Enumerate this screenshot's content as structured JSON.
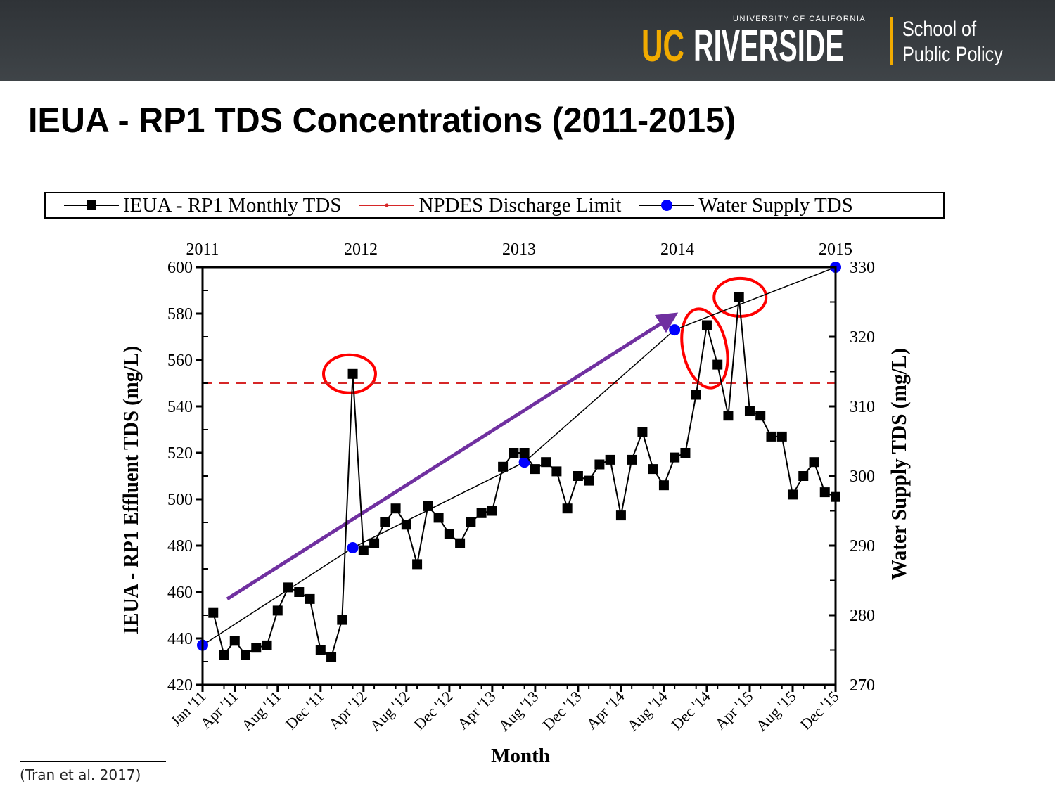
{
  "header": {
    "logo_uc": "UC",
    "logo_riverside": "RIVERSIDE",
    "logo_university": "UNIVERSITY OF CALIFORNIA",
    "school_line1": "School of",
    "school_line2": "Public Policy",
    "brand_gold": "#f1ab00",
    "bg_color": "#3a3f43"
  },
  "slide_title": "IEUA - RP1 TDS Concentrations (2011-2015)",
  "footnote": "(Tran et al. 2017)",
  "chart_data": {
    "type": "line",
    "title": "",
    "xlabel": "Month",
    "ylabel": "IEUA - RP1 Effluent TDS (mg/L)",
    "y2label": "Water Supply TDS (mg/L)",
    "ylim": [
      420,
      600
    ],
    "y2lim": [
      270,
      330
    ],
    "yticks": [
      420,
      440,
      460,
      480,
      500,
      520,
      540,
      560,
      580,
      600
    ],
    "y2ticks": [
      270,
      280,
      290,
      300,
      310,
      320,
      330
    ],
    "xlim_months": [
      0,
      59
    ],
    "xtick_labels": [
      {
        "month": 0,
        "label": "Jan '11"
      },
      {
        "month": 3,
        "label": "Apr '11"
      },
      {
        "month": 7,
        "label": "Aug '11"
      },
      {
        "month": 11,
        "label": "Dec '11"
      },
      {
        "month": 15,
        "label": "Apr '12"
      },
      {
        "month": 19,
        "label": "Aug '12"
      },
      {
        "month": 23,
        "label": "Dec '12"
      },
      {
        "month": 27,
        "label": "Apr '13"
      },
      {
        "month": 31,
        "label": "Aug '13"
      },
      {
        "month": 35,
        "label": "Dec '13"
      },
      {
        "month": 39,
        "label": "Apr '14"
      },
      {
        "month": 43,
        "label": "Aug '14"
      },
      {
        "month": 47,
        "label": "Dec '14"
      },
      {
        "month": 51,
        "label": "Apr '15"
      },
      {
        "month": 55,
        "label": "Aug '15"
      },
      {
        "month": 59,
        "label": "Dec '15"
      }
    ],
    "top_axis_labels": [
      {
        "month": 0,
        "label": "2011"
      },
      {
        "month": 15,
        "label": "2012"
      },
      {
        "month": 30,
        "label": "2013"
      },
      {
        "month": 45,
        "label": "2014"
      },
      {
        "month": 60,
        "label": "2015"
      }
    ],
    "legend": {
      "position": "top",
      "entries": [
        "IEUA - RP1 Monthly TDS",
        "NPDES Discharge Limit",
        "Water Supply TDS"
      ]
    },
    "series": [
      {
        "name": "IEUA - RP1 Monthly TDS",
        "axis": "left",
        "color": "#000000",
        "marker": "square",
        "months": [
          1,
          2,
          3,
          4,
          5,
          6,
          7,
          8,
          9,
          10,
          11,
          12,
          13,
          14,
          15,
          16,
          17,
          18,
          19,
          20,
          21,
          22,
          23,
          24,
          25,
          26,
          27,
          28,
          29,
          30,
          31,
          32,
          33,
          34,
          35,
          36,
          37,
          38,
          39,
          40,
          41,
          42,
          43,
          44,
          45,
          46,
          47,
          48,
          49,
          50,
          51,
          52,
          53,
          54,
          55,
          56,
          57,
          58,
          59
        ],
        "values": [
          451,
          433,
          439,
          433,
          436,
          437,
          452,
          462,
          460,
          457,
          435,
          432,
          448,
          554,
          478,
          481,
          490,
          496,
          489,
          472,
          497,
          492,
          485,
          481,
          490,
          494,
          495,
          514,
          520,
          520,
          513,
          516,
          512,
          496,
          510,
          508,
          515,
          517,
          493,
          517,
          529,
          513,
          506,
          518,
          520,
          545,
          575,
          558,
          536,
          587,
          538,
          536,
          527,
          527,
          502,
          510,
          516,
          503,
          501
        ]
      },
      {
        "name": "NPDES Discharge Limit",
        "axis": "left",
        "color": "#d62728",
        "style": "dashed",
        "value": 550
      },
      {
        "name": "Water Supply TDS",
        "axis": "right",
        "color": "#0000ff",
        "marker": "circle",
        "months": [
          0,
          14,
          30,
          44,
          59
        ],
        "values": [
          275.7,
          289.7,
          302.0,
          321.0,
          330.0
        ]
      }
    ],
    "annotations": [
      {
        "type": "arrow",
        "color": "#7030a0",
        "from": {
          "month": 2.3,
          "value": 457
        },
        "to": {
          "month": 43.5,
          "value": 578
        },
        "description": "upward trend arrow"
      },
      {
        "type": "circle",
        "color": "#ff0000",
        "month": 13.7,
        "value": 554
      },
      {
        "type": "ellipse",
        "color": "#ff0000",
        "month": 46.8,
        "value": 565
      },
      {
        "type": "circle",
        "color": "#ff0000",
        "month": 50.1,
        "value": 587
      }
    ]
  }
}
